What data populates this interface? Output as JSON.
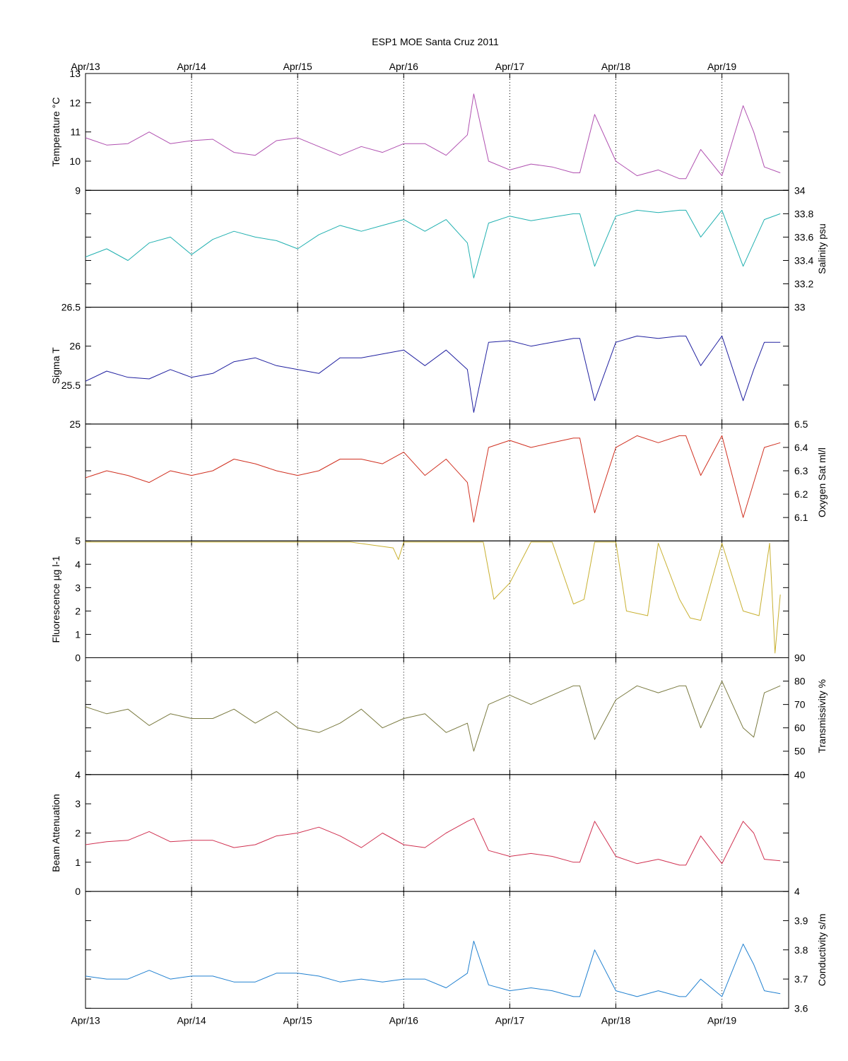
{
  "chart_data": {
    "type": "line",
    "title": "ESP1 MOE Santa Cruz   2011",
    "x_ticks": [
      "Apr/13",
      "Apr/14",
      "Apr/15",
      "Apr/16",
      "Apr/17",
      "Apr/18",
      "Apr/19"
    ],
    "xlim": [
      "Apr/13",
      "Apr/19 + 0.55 day"
    ],
    "grid": "vertical dotted lines at each day",
    "panels": [
      {
        "name": "temperature",
        "ylabel": "Temperature °C",
        "axis_side": "left",
        "color": "#b050b0",
        "ylim": [
          9,
          13
        ],
        "yticks": [
          "9",
          "10",
          "11",
          "12",
          "13"
        ],
        "tick_values": [
          9,
          10,
          11,
          12,
          13
        ],
        "x_days": [
          0,
          0.2,
          0.4,
          0.6,
          0.8,
          1.0,
          1.2,
          1.4,
          1.6,
          1.8,
          2.0,
          2.2,
          2.4,
          2.6,
          2.8,
          3.0,
          3.2,
          3.4,
          3.6,
          3.66,
          3.8,
          4.0,
          4.2,
          4.4,
          4.6,
          4.66,
          4.8,
          5.0,
          5.2,
          5.4,
          5.6,
          5.66,
          5.8,
          6.0,
          6.2,
          6.3,
          6.4,
          6.55
        ],
        "values": [
          10.8,
          10.55,
          10.6,
          11.0,
          10.6,
          10.7,
          10.75,
          10.3,
          10.2,
          10.7,
          10.8,
          10.5,
          10.2,
          10.5,
          10.3,
          10.6,
          10.6,
          10.2,
          10.9,
          12.3,
          10.0,
          9.7,
          9.9,
          9.8,
          9.6,
          9.6,
          11.6,
          10.0,
          9.5,
          9.7,
          9.4,
          9.4,
          10.4,
          9.5,
          11.9,
          11.0,
          9.8,
          9.6
        ]
      },
      {
        "name": "salinity",
        "ylabel": "Salinity psu",
        "axis_side": "right",
        "color": "#20b0b0",
        "ylim": [
          33,
          34
        ],
        "yticks": [
          "33",
          "33.2",
          "33.4",
          "33.6",
          "33.8",
          "34"
        ],
        "tick_values": [
          33,
          33.2,
          33.4,
          33.6,
          33.8,
          34
        ],
        "x_days": [
          0,
          0.2,
          0.4,
          0.6,
          0.8,
          1.0,
          1.2,
          1.4,
          1.6,
          1.8,
          2.0,
          2.2,
          2.4,
          2.6,
          2.8,
          3.0,
          3.2,
          3.4,
          3.6,
          3.66,
          3.8,
          4.0,
          4.2,
          4.4,
          4.6,
          4.66,
          4.8,
          5.0,
          5.2,
          5.4,
          5.6,
          5.66,
          5.8,
          6.0,
          6.2,
          6.3,
          6.4,
          6.55
        ],
        "values": [
          33.43,
          33.5,
          33.4,
          33.55,
          33.6,
          33.45,
          33.58,
          33.65,
          33.6,
          33.57,
          33.5,
          33.62,
          33.7,
          33.65,
          33.7,
          33.75,
          33.65,
          33.75,
          33.55,
          33.25,
          33.72,
          33.78,
          33.74,
          33.77,
          33.8,
          33.8,
          33.35,
          33.78,
          33.83,
          33.81,
          33.83,
          33.83,
          33.6,
          33.83,
          33.35,
          33.55,
          33.75,
          33.8
        ]
      },
      {
        "name": "sigma-t",
        "ylabel": "Sigma T",
        "axis_side": "left",
        "color": "#2020a0",
        "ylim": [
          25,
          26.5
        ],
        "yticks": [
          "25",
          "25.5",
          "26",
          "26.5"
        ],
        "tick_values": [
          25,
          25.5,
          26,
          26.5
        ],
        "x_days": [
          0,
          0.2,
          0.4,
          0.6,
          0.8,
          1.0,
          1.2,
          1.4,
          1.6,
          1.8,
          2.0,
          2.2,
          2.4,
          2.6,
          2.8,
          3.0,
          3.2,
          3.4,
          3.6,
          3.66,
          3.8,
          4.0,
          4.2,
          4.4,
          4.6,
          4.66,
          4.8,
          5.0,
          5.2,
          5.4,
          5.6,
          5.66,
          5.8,
          6.0,
          6.2,
          6.3,
          6.4,
          6.55
        ],
        "values": [
          25.55,
          25.68,
          25.6,
          25.58,
          25.7,
          25.6,
          25.65,
          25.8,
          25.85,
          25.75,
          25.7,
          25.65,
          25.85,
          25.85,
          25.9,
          25.95,
          25.75,
          25.95,
          25.7,
          25.15,
          26.05,
          26.07,
          26.0,
          26.05,
          26.1,
          26.1,
          25.3,
          26.05,
          26.13,
          26.1,
          26.13,
          26.13,
          25.75,
          26.13,
          25.3,
          25.7,
          26.05,
          26.05
        ]
      },
      {
        "name": "oxygen",
        "ylabel": "Oxygen Sat ml/l",
        "axis_side": "right",
        "color": "#d03020",
        "ylim": [
          6,
          6.5
        ],
        "yticks": [
          "6.1",
          "6.2",
          "6.3",
          "6.4",
          "6.5"
        ],
        "tick_values": [
          6.1,
          6.2,
          6.3,
          6.4,
          6.5
        ],
        "x_days": [
          0,
          0.2,
          0.4,
          0.6,
          0.8,
          1.0,
          1.2,
          1.4,
          1.6,
          1.8,
          2.0,
          2.2,
          2.4,
          2.6,
          2.8,
          3.0,
          3.2,
          3.4,
          3.6,
          3.66,
          3.8,
          4.0,
          4.2,
          4.4,
          4.6,
          4.66,
          4.8,
          5.0,
          5.2,
          5.4,
          5.6,
          5.66,
          5.8,
          6.0,
          6.2,
          6.3,
          6.4,
          6.55
        ],
        "values": [
          6.27,
          6.3,
          6.28,
          6.25,
          6.3,
          6.28,
          6.3,
          6.35,
          6.33,
          6.3,
          6.28,
          6.3,
          6.35,
          6.35,
          6.33,
          6.38,
          6.28,
          6.35,
          6.25,
          6.08,
          6.4,
          6.43,
          6.4,
          6.42,
          6.44,
          6.44,
          6.12,
          6.4,
          6.45,
          6.42,
          6.45,
          6.45,
          6.28,
          6.45,
          6.1,
          6.25,
          6.4,
          6.42
        ]
      },
      {
        "name": "fluorescence",
        "ylabel": "Fluorescence µg l-1",
        "axis_side": "left",
        "color": "#c8b030",
        "ylim": [
          0,
          5
        ],
        "yticks": [
          "0",
          "1",
          "2",
          "3",
          "4",
          "5"
        ],
        "tick_values": [
          0,
          1,
          2,
          3,
          4,
          5
        ],
        "x_days": [
          0,
          0.5,
          1.0,
          1.5,
          2.0,
          2.5,
          2.9,
          2.95,
          3.0,
          3.5,
          3.75,
          3.85,
          4.0,
          4.2,
          4.4,
          4.6,
          4.7,
          4.8,
          5.0,
          5.1,
          5.3,
          5.4,
          5.6,
          5.7,
          5.8,
          6.0,
          6.2,
          6.35,
          6.45,
          6.5,
          6.55
        ],
        "values": [
          4.95,
          4.95,
          4.95,
          4.95,
          4.95,
          4.95,
          4.7,
          4.2,
          4.95,
          4.95,
          4.95,
          2.5,
          3.2,
          4.95,
          4.95,
          2.3,
          2.5,
          4.95,
          4.95,
          2.0,
          1.8,
          4.9,
          2.5,
          1.7,
          1.6,
          4.9,
          2.0,
          1.8,
          4.9,
          0.2,
          2.7
        ]
      },
      {
        "name": "transmissivity",
        "ylabel": "Transmissivity %",
        "axis_side": "right",
        "color": "#7a7a40",
        "ylim": [
          40,
          90
        ],
        "yticks": [
          "40",
          "50",
          "60",
          "70",
          "80",
          "90"
        ],
        "tick_values": [
          40,
          50,
          60,
          70,
          80,
          90
        ],
        "x_days": [
          0,
          0.2,
          0.4,
          0.6,
          0.8,
          1.0,
          1.2,
          1.4,
          1.6,
          1.8,
          2.0,
          2.2,
          2.4,
          2.6,
          2.8,
          3.0,
          3.2,
          3.4,
          3.6,
          3.66,
          3.8,
          4.0,
          4.2,
          4.4,
          4.6,
          4.66,
          4.8,
          5.0,
          5.2,
          5.4,
          5.6,
          5.66,
          5.8,
          6.0,
          6.2,
          6.3,
          6.4,
          6.55
        ],
        "values": [
          69,
          66,
          68,
          61,
          66,
          64,
          64,
          68,
          62,
          67,
          60,
          58,
          62,
          68,
          60,
          64,
          66,
          58,
          62,
          50,
          70,
          74,
          70,
          74,
          78,
          78,
          55,
          72,
          78,
          75,
          78,
          78,
          60,
          80,
          60,
          56,
          75,
          78
        ]
      },
      {
        "name": "beam-attenuation",
        "ylabel": "Beam Attenuation",
        "axis_side": "left",
        "color": "#d03050",
        "ylim": [
          0,
          4
        ],
        "yticks": [
          "0",
          "1",
          "2",
          "3",
          "4"
        ],
        "tick_values": [
          0,
          1,
          2,
          3,
          4
        ],
        "x_days": [
          0,
          0.2,
          0.4,
          0.6,
          0.8,
          1.0,
          1.2,
          1.4,
          1.6,
          1.8,
          2.0,
          2.2,
          2.4,
          2.6,
          2.8,
          3.0,
          3.2,
          3.4,
          3.6,
          3.66,
          3.8,
          4.0,
          4.2,
          4.4,
          4.6,
          4.66,
          4.8,
          5.0,
          5.2,
          5.4,
          5.6,
          5.66,
          5.8,
          6.0,
          6.2,
          6.3,
          6.4,
          6.55
        ],
        "values": [
          1.6,
          1.7,
          1.75,
          2.05,
          1.7,
          1.75,
          1.75,
          1.5,
          1.6,
          1.9,
          2.0,
          2.2,
          1.9,
          1.5,
          2.0,
          1.6,
          1.5,
          2.0,
          2.4,
          2.5,
          1.4,
          1.2,
          1.3,
          1.2,
          1.0,
          1.0,
          2.4,
          1.2,
          0.95,
          1.1,
          0.9,
          0.9,
          1.9,
          0.95,
          2.4,
          2.0,
          1.1,
          1.05
        ]
      },
      {
        "name": "conductivity",
        "ylabel": "Conductivity s/m",
        "axis_side": "right",
        "color": "#2080d0",
        "ylim": [
          3.6,
          4
        ],
        "yticks": [
          "3.6",
          "3.7",
          "3.8",
          "3.9",
          "4"
        ],
        "tick_values": [
          3.6,
          3.7,
          3.8,
          3.9,
          4
        ],
        "x_days": [
          0,
          0.2,
          0.4,
          0.6,
          0.8,
          1.0,
          1.2,
          1.4,
          1.6,
          1.8,
          2.0,
          2.2,
          2.4,
          2.6,
          2.8,
          3.0,
          3.2,
          3.4,
          3.6,
          3.66,
          3.8,
          4.0,
          4.2,
          4.4,
          4.6,
          4.66,
          4.8,
          5.0,
          5.2,
          5.4,
          5.6,
          5.66,
          5.8,
          6.0,
          6.2,
          6.3,
          6.4,
          6.55
        ],
        "values": [
          3.71,
          3.7,
          3.7,
          3.73,
          3.7,
          3.71,
          3.71,
          3.69,
          3.69,
          3.72,
          3.72,
          3.71,
          3.69,
          3.7,
          3.69,
          3.7,
          3.7,
          3.67,
          3.72,
          3.83,
          3.68,
          3.66,
          3.67,
          3.66,
          3.64,
          3.64,
          3.8,
          3.66,
          3.64,
          3.66,
          3.64,
          3.64,
          3.7,
          3.64,
          3.82,
          3.75,
          3.66,
          3.65
        ]
      }
    ]
  }
}
